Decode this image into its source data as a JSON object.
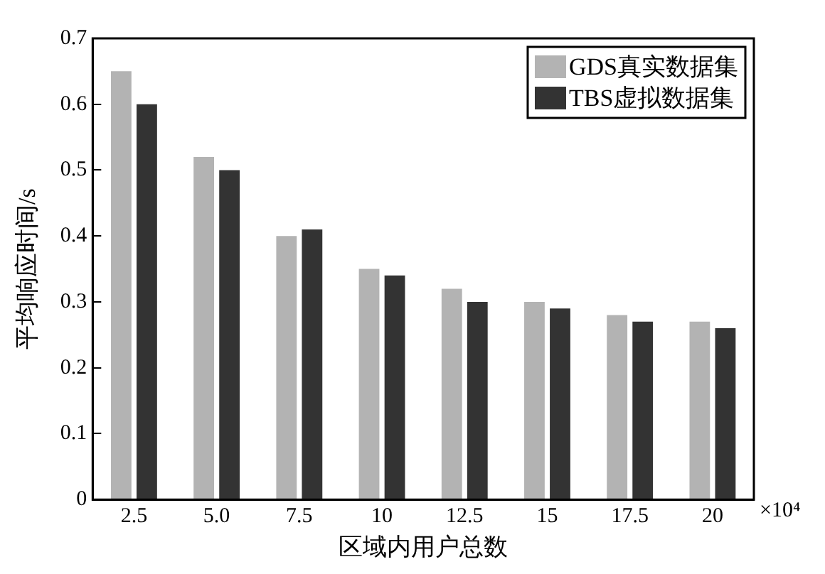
{
  "chart_data": {
    "type": "bar",
    "xlabel": "区域内用户总数",
    "ylabel": "平均响应时间/s",
    "categories": [
      "2.5",
      "5.0",
      "7.5",
      "10",
      "12.5",
      "15",
      "17.5",
      "20"
    ],
    "series": [
      {
        "name": "GDS真实数据集",
        "color": "#b3b3b3",
        "values": [
          0.65,
          0.52,
          0.4,
          0.35,
          0.32,
          0.3,
          0.28,
          0.27
        ]
      },
      {
        "name": "TBS虚拟数据集",
        "color": "#333333",
        "values": [
          0.6,
          0.5,
          0.41,
          0.34,
          0.3,
          0.29,
          0.27,
          0.26
        ]
      }
    ],
    "ylim": [
      0,
      0.7
    ],
    "yticks": [
      0,
      0.1,
      0.2,
      0.3,
      0.4,
      0.5,
      0.6,
      0.7
    ],
    "legend": "top right",
    "annotations": [
      "×10⁴"
    ]
  }
}
